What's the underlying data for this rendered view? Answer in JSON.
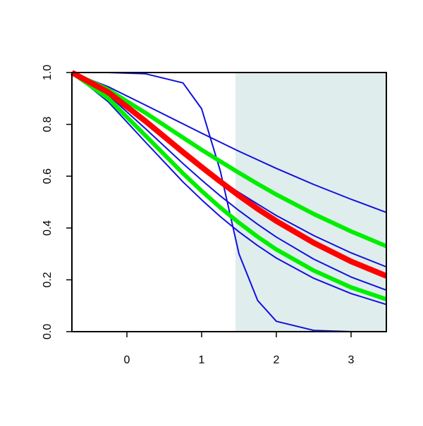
{
  "chart_data": {
    "type": "line",
    "x": [
      -0.736,
      -0.25,
      0.25,
      0.75,
      1,
      1.25,
      1.5,
      1.75,
      2,
      2.5,
      3,
      3.472
    ],
    "series": [
      {
        "color": "#1010dd",
        "width": 2,
        "values": [
          1,
          0.945,
          0.874,
          0.802,
          0.766,
          0.731,
          0.696,
          0.663,
          0.63,
          0.568,
          0.511,
          0.46
        ]
      },
      {
        "color": "#1010dd",
        "width": 2,
        "values": [
          1,
          1.0,
          0.995,
          0.96,
          0.86,
          0.62,
          0.3,
          0.12,
          0.04,
          0.005,
          0,
          0
        ]
      },
      {
        "color": "#1010dd",
        "width": 2,
        "values": [
          1,
          0.915,
          0.803,
          0.692,
          0.638,
          0.586,
          0.537,
          0.492,
          0.448,
          0.371,
          0.304,
          0.25
        ]
      },
      {
        "color": "#1010dd",
        "width": 2,
        "values": [
          1,
          0.913,
          0.783,
          0.649,
          0.585,
          0.524,
          0.467,
          0.414,
          0.365,
          0.28,
          0.211,
          0.16
        ]
      },
      {
        "color": "#1010dd",
        "width": 2,
        "values": [
          1,
          0.887,
          0.731,
          0.578,
          0.509,
          0.444,
          0.385,
          0.332,
          0.284,
          0.206,
          0.147,
          0.105
        ]
      },
      {
        "color": "#00ee00",
        "width": 6,
        "values": [
          1,
          0.934,
          0.844,
          0.749,
          0.702,
          0.657,
          0.613,
          0.57,
          0.529,
          0.454,
          0.387,
          0.33
        ]
      },
      {
        "color": "#00ee00",
        "width": 6,
        "values": [
          1,
          0.9,
          0.756,
          0.611,
          0.543,
          0.479,
          0.42,
          0.366,
          0.317,
          0.236,
          0.171,
          0.125
        ]
      },
      {
        "color": "#ff0000",
        "width": 8,
        "values": [
          1,
          0.924,
          0.812,
          0.693,
          0.635,
          0.579,
          0.525,
          0.474,
          0.427,
          0.343,
          0.271,
          0.215
        ]
      }
    ],
    "shade_start": 1.453,
    "shade_color": "#e0eded",
    "xlim": [
      -0.736,
      3.472
    ],
    "xticks": [
      0,
      1,
      2,
      3
    ],
    "ylim": [
      0,
      1
    ],
    "yticks": [
      {
        "value": 0,
        "label": "0.0"
      },
      0.2,
      0.4,
      0.6,
      0.8,
      {
        "value": 1,
        "label": "1.0"
      }
    ]
  }
}
